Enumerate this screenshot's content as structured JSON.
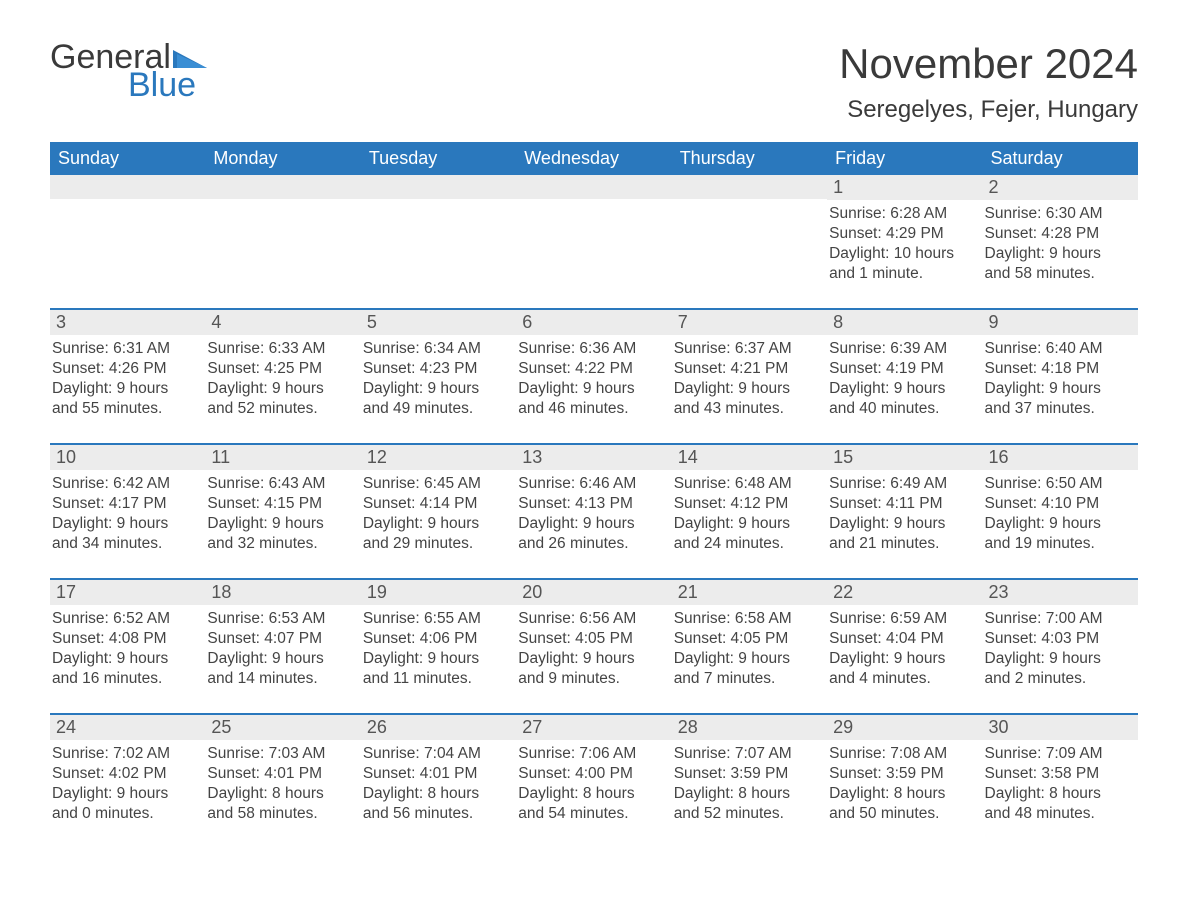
{
  "logo": {
    "text1": "General",
    "text2": "Blue",
    "triangle_color": "#2a78bd"
  },
  "title": "November 2024",
  "location": "Seregelyes, Fejer, Hungary",
  "colors": {
    "header_bg": "#2a78bd",
    "header_text": "#ffffff",
    "daynum_bg": "#ececec",
    "week_border": "#2a78bd",
    "body_text": "#444444",
    "title_text": "#3a3a3a"
  },
  "weekdays": [
    "Sunday",
    "Monday",
    "Tuesday",
    "Wednesday",
    "Thursday",
    "Friday",
    "Saturday"
  ],
  "weeks": [
    [
      {
        "empty": true
      },
      {
        "empty": true
      },
      {
        "empty": true
      },
      {
        "empty": true
      },
      {
        "empty": true
      },
      {
        "num": "1",
        "sunrise": "Sunrise: 6:28 AM",
        "sunset": "Sunset: 4:29 PM",
        "day1": "Daylight: 10 hours",
        "day2": "and 1 minute."
      },
      {
        "num": "2",
        "sunrise": "Sunrise: 6:30 AM",
        "sunset": "Sunset: 4:28 PM",
        "day1": "Daylight: 9 hours",
        "day2": "and 58 minutes."
      }
    ],
    [
      {
        "num": "3",
        "sunrise": "Sunrise: 6:31 AM",
        "sunset": "Sunset: 4:26 PM",
        "day1": "Daylight: 9 hours",
        "day2": "and 55 minutes."
      },
      {
        "num": "4",
        "sunrise": "Sunrise: 6:33 AM",
        "sunset": "Sunset: 4:25 PM",
        "day1": "Daylight: 9 hours",
        "day2": "and 52 minutes."
      },
      {
        "num": "5",
        "sunrise": "Sunrise: 6:34 AM",
        "sunset": "Sunset: 4:23 PM",
        "day1": "Daylight: 9 hours",
        "day2": "and 49 minutes."
      },
      {
        "num": "6",
        "sunrise": "Sunrise: 6:36 AM",
        "sunset": "Sunset: 4:22 PM",
        "day1": "Daylight: 9 hours",
        "day2": "and 46 minutes."
      },
      {
        "num": "7",
        "sunrise": "Sunrise: 6:37 AM",
        "sunset": "Sunset: 4:21 PM",
        "day1": "Daylight: 9 hours",
        "day2": "and 43 minutes."
      },
      {
        "num": "8",
        "sunrise": "Sunrise: 6:39 AM",
        "sunset": "Sunset: 4:19 PM",
        "day1": "Daylight: 9 hours",
        "day2": "and 40 minutes."
      },
      {
        "num": "9",
        "sunrise": "Sunrise: 6:40 AM",
        "sunset": "Sunset: 4:18 PM",
        "day1": "Daylight: 9 hours",
        "day2": "and 37 minutes."
      }
    ],
    [
      {
        "num": "10",
        "sunrise": "Sunrise: 6:42 AM",
        "sunset": "Sunset: 4:17 PM",
        "day1": "Daylight: 9 hours",
        "day2": "and 34 minutes."
      },
      {
        "num": "11",
        "sunrise": "Sunrise: 6:43 AM",
        "sunset": "Sunset: 4:15 PM",
        "day1": "Daylight: 9 hours",
        "day2": "and 32 minutes."
      },
      {
        "num": "12",
        "sunrise": "Sunrise: 6:45 AM",
        "sunset": "Sunset: 4:14 PM",
        "day1": "Daylight: 9 hours",
        "day2": "and 29 minutes."
      },
      {
        "num": "13",
        "sunrise": "Sunrise: 6:46 AM",
        "sunset": "Sunset: 4:13 PM",
        "day1": "Daylight: 9 hours",
        "day2": "and 26 minutes."
      },
      {
        "num": "14",
        "sunrise": "Sunrise: 6:48 AM",
        "sunset": "Sunset: 4:12 PM",
        "day1": "Daylight: 9 hours",
        "day2": "and 24 minutes."
      },
      {
        "num": "15",
        "sunrise": "Sunrise: 6:49 AM",
        "sunset": "Sunset: 4:11 PM",
        "day1": "Daylight: 9 hours",
        "day2": "and 21 minutes."
      },
      {
        "num": "16",
        "sunrise": "Sunrise: 6:50 AM",
        "sunset": "Sunset: 4:10 PM",
        "day1": "Daylight: 9 hours",
        "day2": "and 19 minutes."
      }
    ],
    [
      {
        "num": "17",
        "sunrise": "Sunrise: 6:52 AM",
        "sunset": "Sunset: 4:08 PM",
        "day1": "Daylight: 9 hours",
        "day2": "and 16 minutes."
      },
      {
        "num": "18",
        "sunrise": "Sunrise: 6:53 AM",
        "sunset": "Sunset: 4:07 PM",
        "day1": "Daylight: 9 hours",
        "day2": "and 14 minutes."
      },
      {
        "num": "19",
        "sunrise": "Sunrise: 6:55 AM",
        "sunset": "Sunset: 4:06 PM",
        "day1": "Daylight: 9 hours",
        "day2": "and 11 minutes."
      },
      {
        "num": "20",
        "sunrise": "Sunrise: 6:56 AM",
        "sunset": "Sunset: 4:05 PM",
        "day1": "Daylight: 9 hours",
        "day2": "and 9 minutes."
      },
      {
        "num": "21",
        "sunrise": "Sunrise: 6:58 AM",
        "sunset": "Sunset: 4:05 PM",
        "day1": "Daylight: 9 hours",
        "day2": "and 7 minutes."
      },
      {
        "num": "22",
        "sunrise": "Sunrise: 6:59 AM",
        "sunset": "Sunset: 4:04 PM",
        "day1": "Daylight: 9 hours",
        "day2": "and 4 minutes."
      },
      {
        "num": "23",
        "sunrise": "Sunrise: 7:00 AM",
        "sunset": "Sunset: 4:03 PM",
        "day1": "Daylight: 9 hours",
        "day2": "and 2 minutes."
      }
    ],
    [
      {
        "num": "24",
        "sunrise": "Sunrise: 7:02 AM",
        "sunset": "Sunset: 4:02 PM",
        "day1": "Daylight: 9 hours",
        "day2": "and 0 minutes."
      },
      {
        "num": "25",
        "sunrise": "Sunrise: 7:03 AM",
        "sunset": "Sunset: 4:01 PM",
        "day1": "Daylight: 8 hours",
        "day2": "and 58 minutes."
      },
      {
        "num": "26",
        "sunrise": "Sunrise: 7:04 AM",
        "sunset": "Sunset: 4:01 PM",
        "day1": "Daylight: 8 hours",
        "day2": "and 56 minutes."
      },
      {
        "num": "27",
        "sunrise": "Sunrise: 7:06 AM",
        "sunset": "Sunset: 4:00 PM",
        "day1": "Daylight: 8 hours",
        "day2": "and 54 minutes."
      },
      {
        "num": "28",
        "sunrise": "Sunrise: 7:07 AM",
        "sunset": "Sunset: 3:59 PM",
        "day1": "Daylight: 8 hours",
        "day2": "and 52 minutes."
      },
      {
        "num": "29",
        "sunrise": "Sunrise: 7:08 AM",
        "sunset": "Sunset: 3:59 PM",
        "day1": "Daylight: 8 hours",
        "day2": "and 50 minutes."
      },
      {
        "num": "30",
        "sunrise": "Sunrise: 7:09 AM",
        "sunset": "Sunset: 3:58 PM",
        "day1": "Daylight: 8 hours",
        "day2": "and 48 minutes."
      }
    ]
  ]
}
